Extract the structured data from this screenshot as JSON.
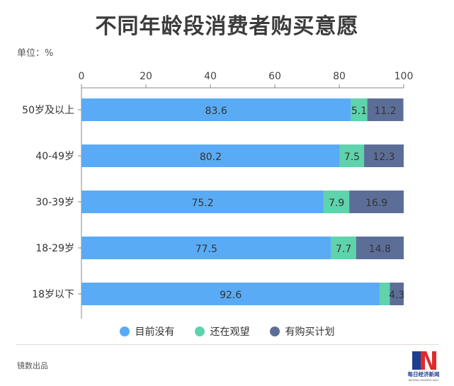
{
  "title": "不同年龄段消费者购买意愿",
  "unit_label": "单位：%",
  "source": "镜数出品",
  "logo_text": "每日经济新闻",
  "logo_subtext": "NATIONAL BUSINESS DAILY",
  "colors": {
    "series": [
      "#5aabf5",
      "#5fd3ab",
      "#5c6e98"
    ],
    "axis": "#888888",
    "text": "#333333"
  },
  "chart_data": {
    "type": "bar",
    "orientation": "horizontal",
    "stacked": true,
    "title": "不同年龄段消费者购买意愿",
    "xlabel": "",
    "ylabel": "",
    "xlim": [
      0,
      100
    ],
    "x_ticks": [
      "0",
      "20",
      "40",
      "60",
      "80",
      "100"
    ],
    "categories": [
      "50岁及以上",
      "40-49岁",
      "30-39岁",
      "18-29岁",
      "18岁以下"
    ],
    "series": [
      {
        "name": "目前没有",
        "values": [
          83.6,
          80.2,
          75.2,
          77.5,
          92.6
        ]
      },
      {
        "name": "还在观望",
        "values": [
          5.1,
          7.5,
          7.9,
          7.7,
          3.1
        ]
      },
      {
        "name": "有购买计划",
        "values": [
          11.2,
          12.3,
          16.9,
          14.8,
          4.3
        ]
      }
    ],
    "data_labels": [
      [
        "83.6",
        "5.1",
        "11.2"
      ],
      [
        "80.2",
        "7.5",
        "12.3"
      ],
      [
        "75.2",
        "7.9",
        "16.9"
      ],
      [
        "77.5",
        "7.7",
        "14.8"
      ],
      [
        "92.6",
        "",
        "4.3"
      ]
    ],
    "legend_position": "bottom",
    "grid": false
  }
}
